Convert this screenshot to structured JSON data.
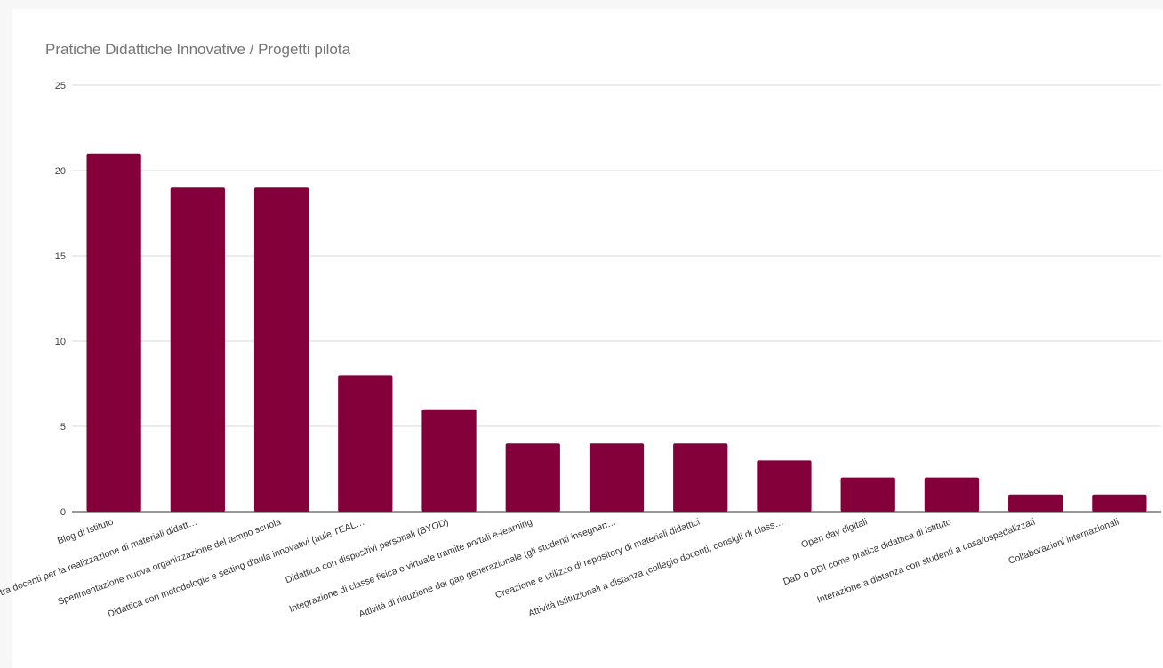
{
  "title": "Pratiche Didattiche Innovative / Progetti pilota",
  "colors": {
    "bar": "#84003a",
    "grid": "#d9d9d9",
    "baseline": "#333333"
  },
  "chart_data": {
    "type": "bar",
    "title": "Pratiche Didattiche Innovative / Progetti pilota",
    "xlabel": "",
    "ylabel": "",
    "ylim": [
      0,
      25
    ],
    "yticks": [
      0,
      5,
      10,
      15,
      20,
      25
    ],
    "grid": true,
    "legend": "none",
    "categories": [
      "Blog di Istituto",
      "Collaborazione tra docenti per la realizzazione di materiali didatt…",
      "Sperimentazione nuova organizzazione del tempo scuola",
      "Didattica con metodologie e setting d'aula innovativi (aule TEAL…",
      "Didattica con dispositivi personali (BYOD)",
      "Integrazione di classe fisica e virtuale tramite portali e-learning",
      "Attività di riduzione del gap generazionale (gli studenti insegnan…",
      "Creazione e utilizzo di repository di materiali didattici",
      "Attività istituzionali a distanza (collegio docenti, consigli di class…",
      "Open day digitali",
      "DaD o DDI come pratica didattica di istituto",
      "Interazione a distanza con studenti a casa/ospedalizzati",
      "Collaborazioni internazionali"
    ],
    "values": [
      21,
      19,
      19,
      8,
      6,
      4,
      4,
      4,
      3,
      2,
      2,
      1,
      1
    ]
  }
}
